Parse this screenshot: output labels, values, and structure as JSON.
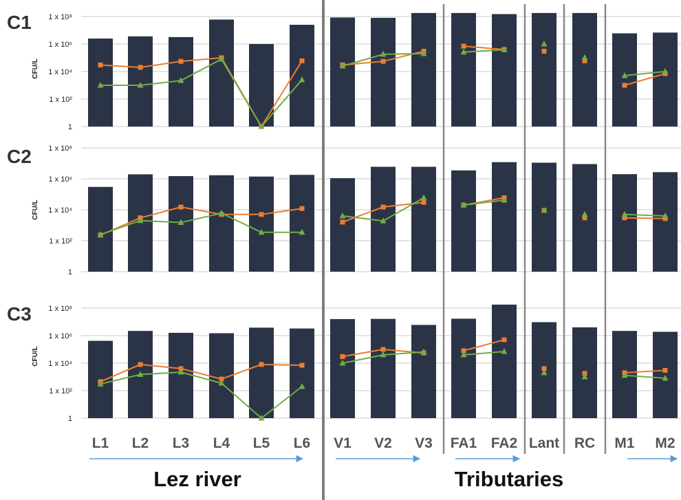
{
  "chart_data": {
    "type": "bar",
    "categories": [
      "L1",
      "L2",
      "L3",
      "L4",
      "L5",
      "L6",
      "V1",
      "V2",
      "V3",
      "FA1",
      "FA2",
      "Lant",
      "RC",
      "M1",
      "M2"
    ],
    "category_groups": [
      {
        "label": "Lez river",
        "categories": [
          "L1",
          "L2",
          "L3",
          "L4",
          "L5",
          "L6"
        ]
      },
      {
        "label": "Tributaries",
        "categories": [
          "V1",
          "V2",
          "V3",
          "FA1",
          "FA2",
          "Lant",
          "RC",
          "M1",
          "M2"
        ]
      }
    ],
    "y_scale": "log10",
    "ylabel": "CFU/L",
    "ylim": [
      1,
      100000000
    ],
    "y_ticks": [
      "1",
      "1 x 10²",
      "1 x 10⁴",
      "1 x 10⁶",
      "1 x 10⁸"
    ],
    "grid": true,
    "colors": {
      "bar": "#2b3447",
      "orange": "#ed7d31",
      "green": "#70ad47",
      "divider": "#888888",
      "main_divider": "#7f7f7f",
      "arrow": "#5b9bd5"
    },
    "panels": [
      {
        "label": "C1",
        "series": [
          {
            "kind": "bar",
            "values": [
              2500000,
              3600000,
              3200000,
              60000000,
              1000000,
              25000000,
              85000000,
              80000000,
              180000000,
              180000000,
              150000000,
              180000000,
              180000000,
              6000000,
              6800000
            ]
          },
          {
            "kind": "line",
            "marker": "square",
            "color": "orange",
            "values": [
              30000,
              20000,
              55000,
              100000,
              1,
              60000,
              30000,
              55000,
              300000,
              700000,
              400000,
              300000,
              60000,
              1000,
              7000
            ]
          },
          {
            "kind": "line",
            "marker": "triangle",
            "color": "green",
            "values": [
              1000,
              1000,
              2200,
              80000,
              1,
              2500,
              25000,
              180000,
              200000,
              260000,
              380000,
              1000000,
              100000,
              5000,
              10000
            ]
          }
        ]
      },
      {
        "label": "C2",
        "series": [
          {
            "kind": "bar",
            "values": [
              300000,
              1950000,
              1500000,
              1700000,
              1400000,
              1800000,
              1100000,
              6000000,
              6000000,
              3500000,
              12000000,
              11000000,
              9000000,
              2000000,
              2700000
            ]
          },
          {
            "kind": "line",
            "marker": "square",
            "color": "orange",
            "values": [
              230,
              3000,
              15000,
              5000,
              5000,
              12000,
              1600,
              15000,
              30000,
              20000,
              60000,
              9000,
              3000,
              3000,
              2700
            ]
          },
          {
            "kind": "line",
            "marker": "triangle",
            "color": "green",
            "values": [
              250,
              2000,
              1500,
              6000,
              350,
              350,
              4000,
              1900,
              60000,
              20000,
              42000,
              9000,
              5000,
              5000,
              4000
            ]
          }
        ]
      },
      {
        "label": "C3",
        "series": [
          {
            "kind": "bar",
            "values": [
              420000,
              2200000,
              1600000,
              1500000,
              3800000,
              3300000,
              16000000,
              16500000,
              6000000,
              17000000,
              180000000,
              9500000,
              4000000,
              2200000,
              1900000
            ]
          },
          {
            "kind": "line",
            "marker": "square",
            "color": "orange",
            "values": [
              450,
              8000,
              4000,
              700,
              8000,
              7000,
              30000,
              100000,
              55000,
              80000,
              500000,
              4000,
              1800,
              2000,
              3000
            ]
          },
          {
            "kind": "line",
            "marker": "triangle",
            "color": "green",
            "values": [
              300,
              1500,
              2200,
              350,
              1,
              200,
              10000,
              40000,
              65000,
              40000,
              70000,
              2000,
              1000,
              1300,
              800
            ]
          }
        ]
      }
    ]
  }
}
